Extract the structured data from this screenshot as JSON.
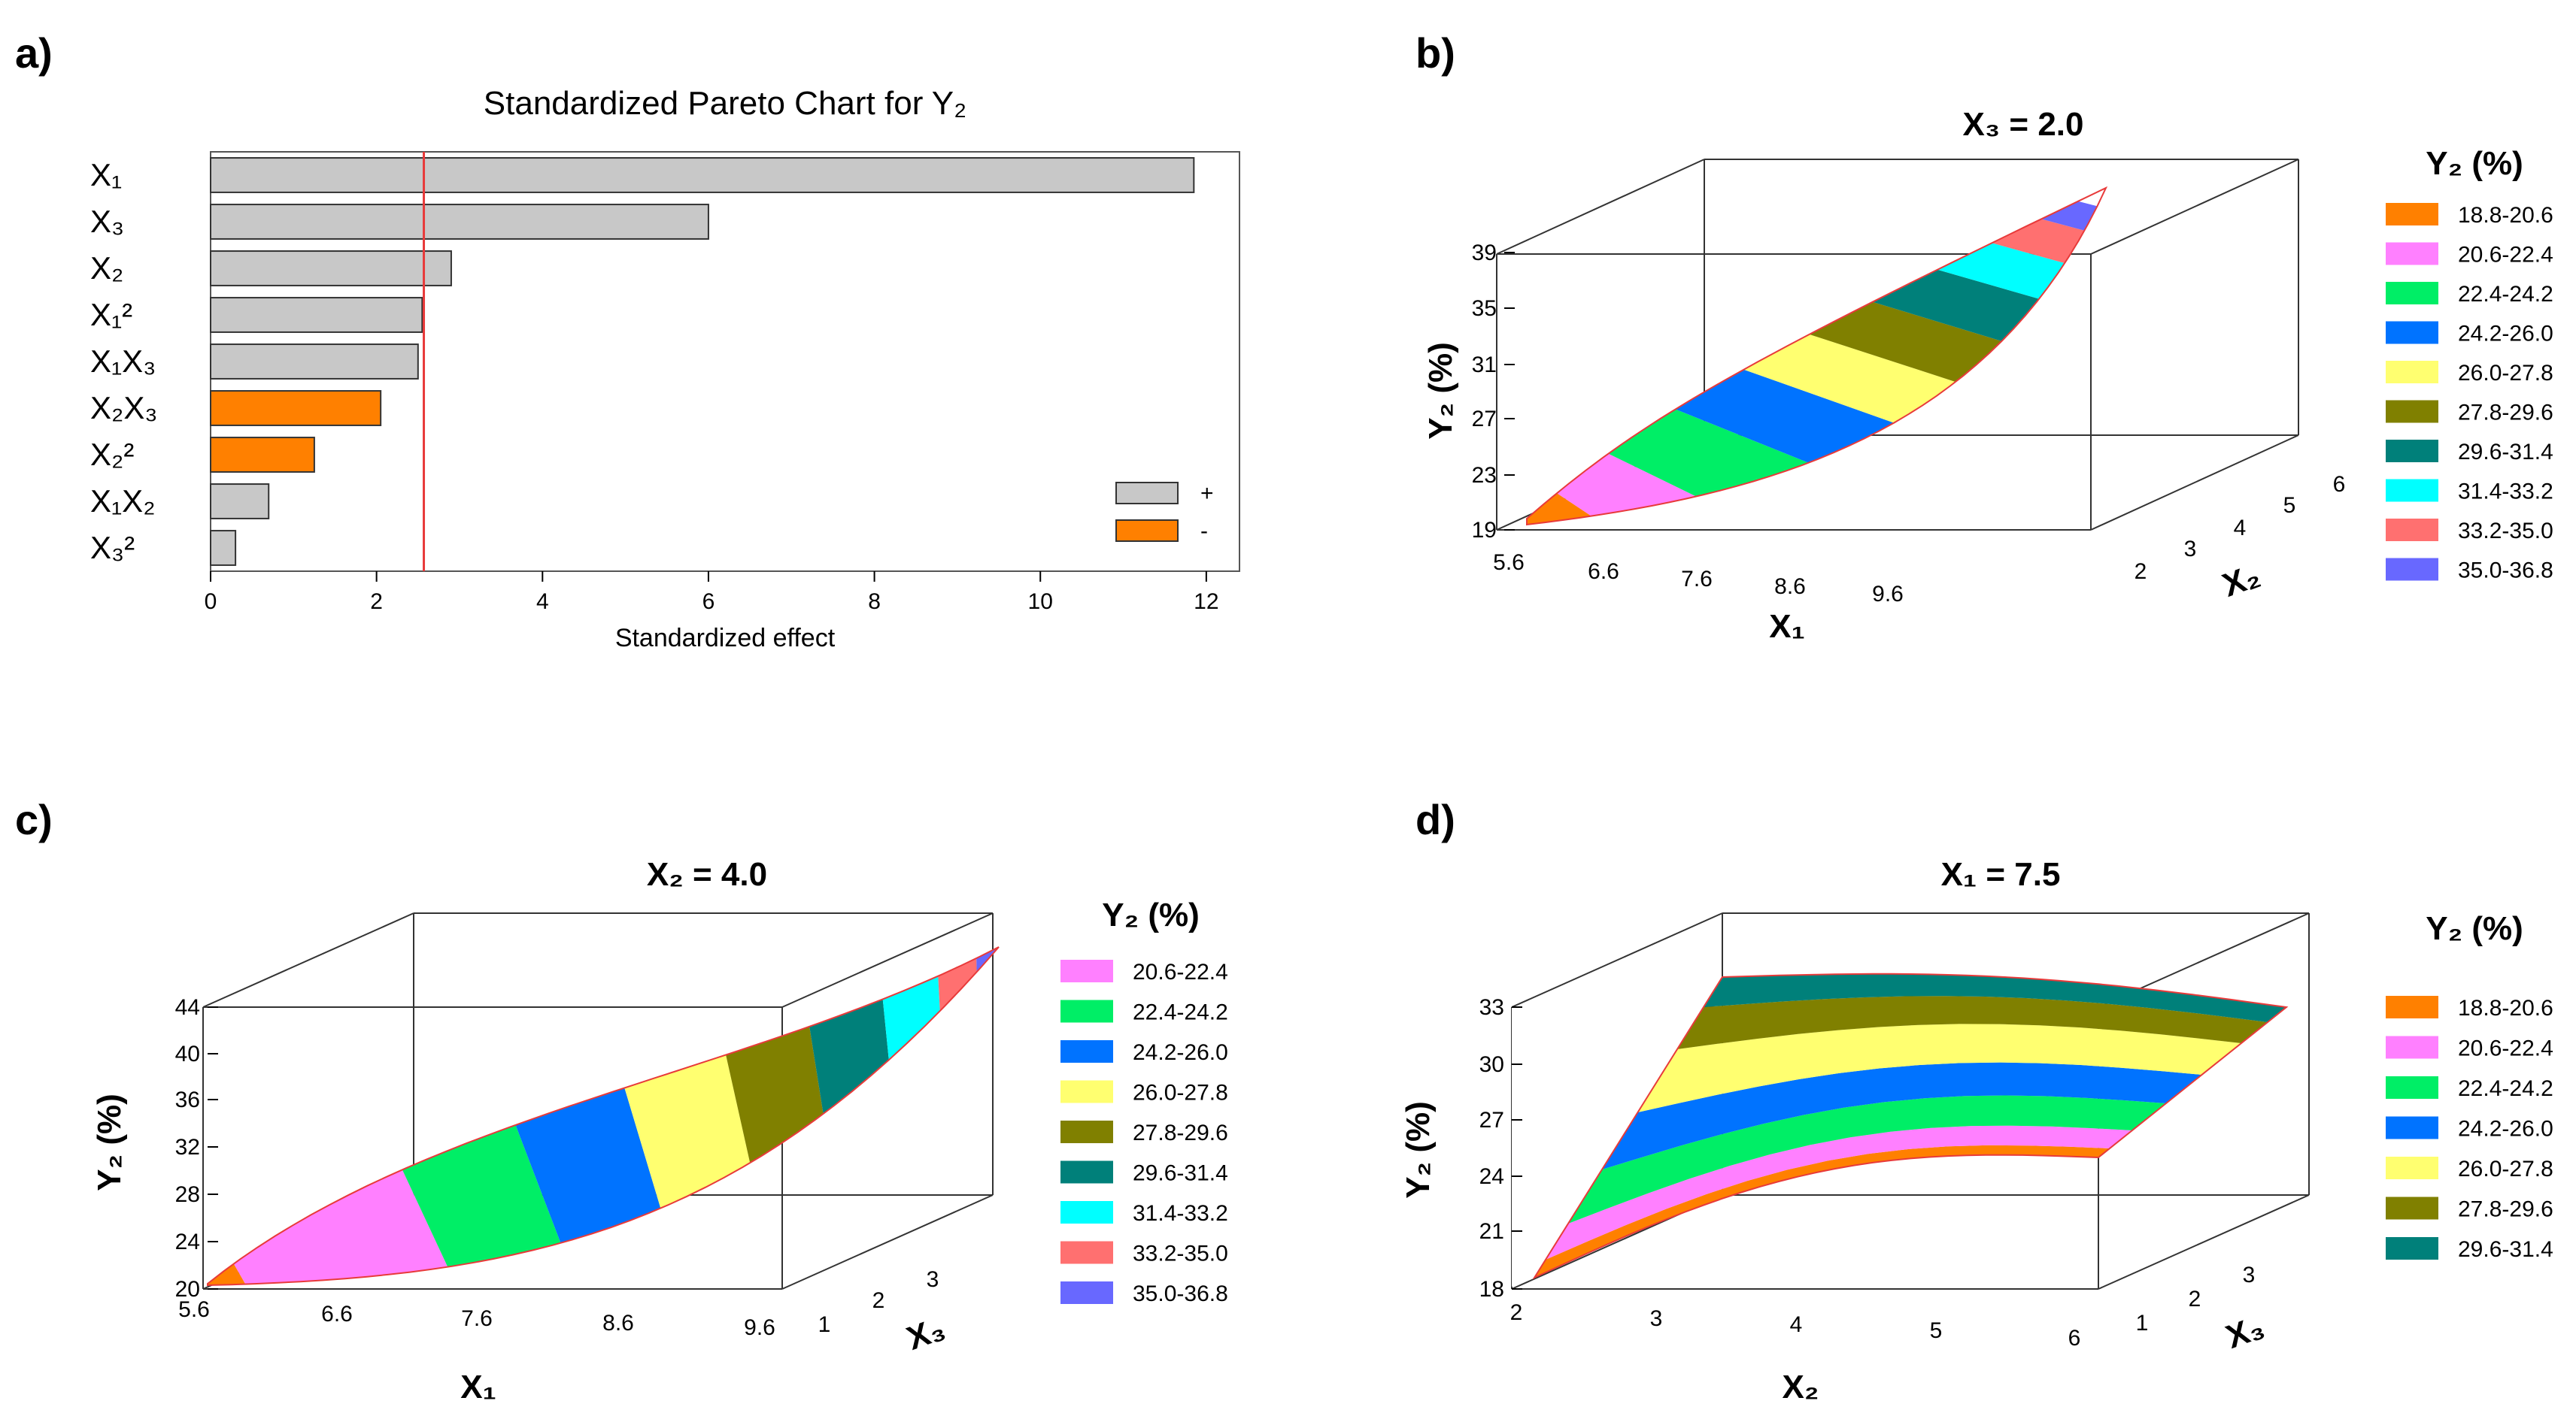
{
  "panel_labels": [
    "a)",
    "b)",
    "c)",
    "d)"
  ],
  "sign_legend": [
    "+",
    "-"
  ],
  "chart_data": [
    {
      "type": "bar",
      "panel": "a)",
      "title": "Standardized Pareto Chart for Y₂",
      "xlabel": "Standardized effect",
      "categories": [
        "X₁",
        "X₃",
        "X₂",
        "X₁²",
        "X₁X₃",
        "X₂X₃",
        "X₂²",
        "X₁X₂",
        "X₃²"
      ],
      "values": [
        11.85,
        6.0,
        2.9,
        2.55,
        2.5,
        2.05,
        1.25,
        0.7,
        0.3
      ],
      "signs": [
        "+",
        "+",
        "+",
        "+",
        "+",
        "-",
        "-",
        "+",
        "+"
      ],
      "xlim": [
        0,
        12.4
      ],
      "xticks": [
        0,
        2,
        4,
        6,
        8,
        10,
        12
      ],
      "threshold": 2.57,
      "colors": {
        "+": "#c8c8c8",
        "-": "#ff8000",
        "threshold": "#e83a3a"
      }
    },
    {
      "type": "surface",
      "panel": "b)",
      "title": "X₃ = 2.0",
      "xlabel": "X₁",
      "ylabel": "X₂",
      "zlabel": "Y₂ (%)",
      "xticks": [
        "5.6",
        "6.6",
        "7.6",
        "8.6",
        "9.6"
      ],
      "yticks": [
        "2",
        "3",
        "4",
        "5",
        "6"
      ],
      "zticks": [
        "19",
        "23",
        "27",
        "31",
        "35",
        "39"
      ],
      "legend_title": "Y₂ (%)",
      "legend": [
        {
          "label": "18.8-20.6",
          "color": "#ff8000"
        },
        {
          "label": "20.6-22.4",
          "color": "#ff80ff"
        },
        {
          "label": "22.4-24.2",
          "color": "#00ee66"
        },
        {
          "label": "24.2-26.0",
          "color": "#0073ff"
        },
        {
          "label": "26.0-27.8",
          "color": "#ffff70"
        },
        {
          "label": "27.8-29.6",
          "color": "#808000"
        },
        {
          "label": "29.6-31.4",
          "color": "#00807a"
        },
        {
          "label": "31.4-33.2",
          "color": "#00ffff"
        },
        {
          "label": "33.2-35.0",
          "color": "#ff7070"
        },
        {
          "label": "35.0-36.8",
          "color": "#6868ff"
        }
      ]
    },
    {
      "type": "surface",
      "panel": "c)",
      "title": "X₂ = 4.0",
      "xlabel": "X₁",
      "ylabel": "X₃",
      "zlabel": "Y₂ (%)",
      "xticks": [
        "5.6",
        "6.6",
        "7.6",
        "8.6",
        "9.6"
      ],
      "yticks": [
        "1",
        "2",
        "3"
      ],
      "zticks": [
        "20",
        "24",
        "28",
        "32",
        "36",
        "40",
        "44"
      ],
      "legend_title": "Y₂ (%)",
      "legend": [
        {
          "label": "20.6-22.4",
          "color": "#ff80ff"
        },
        {
          "label": "22.4-24.2",
          "color": "#00ee66"
        },
        {
          "label": "24.2-26.0",
          "color": "#0073ff"
        },
        {
          "label": "26.0-27.8",
          "color": "#ffff70"
        },
        {
          "label": "27.8-29.6",
          "color": "#808000"
        },
        {
          "label": "29.6-31.4",
          "color": "#00807a"
        },
        {
          "label": "31.4-33.2",
          "color": "#00ffff"
        },
        {
          "label": "33.2-35.0",
          "color": "#ff7070"
        },
        {
          "label": "35.0-36.8",
          "color": "#6868ff"
        }
      ]
    },
    {
      "type": "surface",
      "panel": "d)",
      "title": "X₁ = 7.5",
      "xlabel": "X₂",
      "ylabel": "X₃",
      "zlabel": "Y₂ (%)",
      "xticks": [
        "2",
        "3",
        "4",
        "5",
        "6"
      ],
      "yticks": [
        "1",
        "2",
        "3"
      ],
      "zticks": [
        "18",
        "21",
        "24",
        "27",
        "30",
        "33"
      ],
      "legend_title": "Y₂ (%)",
      "legend": [
        {
          "label": "18.8-20.6",
          "color": "#ff8000"
        },
        {
          "label": "20.6-22.4",
          "color": "#ff80ff"
        },
        {
          "label": "22.4-24.2",
          "color": "#00ee66"
        },
        {
          "label": "24.2-26.0",
          "color": "#0073ff"
        },
        {
          "label": "26.0-27.8",
          "color": "#ffff70"
        },
        {
          "label": "27.8-29.6",
          "color": "#808000"
        },
        {
          "label": "29.6-31.4",
          "color": "#00807a"
        }
      ]
    }
  ]
}
